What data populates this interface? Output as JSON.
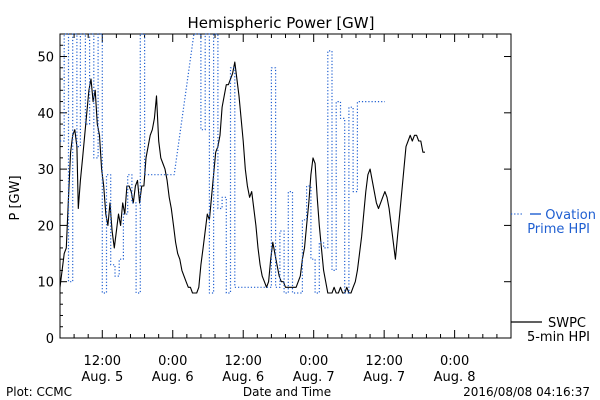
{
  "chart_data": {
    "type": "line",
    "title": "Hemispheric Power [GW]",
    "xlabel": "Date and Time",
    "ylabel": "P [GW]",
    "x_unit": "hours since Aug. 4 00:00",
    "xlim": [
      42,
      106
    ],
    "ylim": [
      0,
      54
    ],
    "y_ticks": [
      0,
      10,
      20,
      30,
      40,
      50
    ],
    "x_ticks": [
      {
        "x": 48,
        "time": "12:00",
        "date": "Aug. 5"
      },
      {
        "x": 58,
        "time": "0:00",
        "date": "Aug. 6"
      },
      {
        "x": 68,
        "time": "12:00",
        "date": "Aug. 6"
      },
      {
        "x": 78,
        "time": "0:00",
        "date": "Aug. 7"
      },
      {
        "x": 88,
        "time": "12:00",
        "date": "Aug. 7"
      },
      {
        "x": 98,
        "time": "0:00",
        "date": "Aug. 8"
      }
    ],
    "grid": false,
    "legend_position": "right",
    "series": [
      {
        "name": "SWPC 5-min HPI",
        "color": "#000000",
        "style": "solid",
        "points": [
          [
            42.0,
            9
          ],
          [
            42.3,
            12
          ],
          [
            42.6,
            15
          ],
          [
            42.9,
            16
          ],
          [
            43.2,
            25
          ],
          [
            43.5,
            33
          ],
          [
            43.8,
            36
          ],
          [
            44.1,
            37
          ],
          [
            44.4,
            34
          ],
          [
            44.6,
            23
          ],
          [
            44.9,
            28
          ],
          [
            45.2,
            32
          ],
          [
            45.5,
            36
          ],
          [
            45.8,
            40
          ],
          [
            46.1,
            44
          ],
          [
            46.4,
            46
          ],
          [
            46.7,
            42
          ],
          [
            47.0,
            44
          ],
          [
            47.3,
            38
          ],
          [
            47.6,
            36
          ],
          [
            47.9,
            30
          ],
          [
            48.2,
            27
          ],
          [
            48.5,
            22
          ],
          [
            48.8,
            20
          ],
          [
            49.1,
            24
          ],
          [
            49.4,
            19
          ],
          [
            49.7,
            16
          ],
          [
            50.0,
            19
          ],
          [
            50.3,
            22
          ],
          [
            50.6,
            20
          ],
          [
            50.9,
            24
          ],
          [
            51.2,
            22
          ],
          [
            51.5,
            27
          ],
          [
            51.8,
            27
          ],
          [
            52.1,
            26
          ],
          [
            52.4,
            24
          ],
          [
            52.7,
            27
          ],
          [
            53.0,
            28
          ],
          [
            53.3,
            24
          ],
          [
            53.6,
            27
          ],
          [
            53.9,
            27
          ],
          [
            54.2,
            32
          ],
          [
            54.5,
            34
          ],
          [
            54.8,
            36
          ],
          [
            55.1,
            37
          ],
          [
            55.4,
            39
          ],
          [
            55.7,
            43
          ],
          [
            56.0,
            35
          ],
          [
            56.3,
            32
          ],
          [
            56.6,
            31
          ],
          [
            56.9,
            30
          ],
          [
            57.2,
            28
          ],
          [
            57.5,
            25
          ],
          [
            57.8,
            23
          ],
          [
            58.1,
            20
          ],
          [
            58.4,
            17
          ],
          [
            58.7,
            15
          ],
          [
            59.0,
            14
          ],
          [
            59.3,
            12
          ],
          [
            59.6,
            11
          ],
          [
            59.9,
            10
          ],
          [
            60.2,
            9
          ],
          [
            60.5,
            9
          ],
          [
            60.8,
            8
          ],
          [
            61.1,
            8
          ],
          [
            61.4,
            8
          ],
          [
            61.7,
            9
          ],
          [
            62.0,
            13
          ],
          [
            62.3,
            16
          ],
          [
            62.6,
            19
          ],
          [
            62.9,
            22
          ],
          [
            63.2,
            21
          ],
          [
            63.5,
            25
          ],
          [
            63.8,
            29
          ],
          [
            64.1,
            33
          ],
          [
            64.4,
            34
          ],
          [
            64.7,
            36
          ],
          [
            65.0,
            41
          ],
          [
            65.3,
            43
          ],
          [
            65.6,
            45
          ],
          [
            65.9,
            45
          ],
          [
            66.2,
            46
          ],
          [
            66.5,
            47
          ],
          [
            66.8,
            49
          ],
          [
            67.1,
            46
          ],
          [
            67.4,
            43
          ],
          [
            67.7,
            39
          ],
          [
            68.0,
            35
          ],
          [
            68.3,
            30
          ],
          [
            68.6,
            27
          ],
          [
            68.9,
            25
          ],
          [
            69.2,
            26
          ],
          [
            69.5,
            23
          ],
          [
            69.8,
            20
          ],
          [
            70.1,
            16
          ],
          [
            70.4,
            13
          ],
          [
            70.7,
            11
          ],
          [
            71.0,
            10
          ],
          [
            71.3,
            9
          ],
          [
            71.6,
            10
          ],
          [
            71.9,
            14
          ],
          [
            72.2,
            17
          ],
          [
            72.5,
            15
          ],
          [
            72.8,
            13
          ],
          [
            73.1,
            11
          ],
          [
            73.4,
            10
          ],
          [
            73.7,
            10
          ],
          [
            74.0,
            9
          ],
          [
            74.3,
            9
          ],
          [
            74.6,
            9
          ],
          [
            74.9,
            9
          ],
          [
            75.2,
            9
          ],
          [
            75.5,
            9
          ],
          [
            75.8,
            10
          ],
          [
            76.1,
            11
          ],
          [
            76.4,
            14
          ],
          [
            76.7,
            16
          ],
          [
            77.0,
            20
          ],
          [
            77.3,
            24
          ],
          [
            77.6,
            29
          ],
          [
            77.9,
            32
          ],
          [
            78.2,
            31
          ],
          [
            78.5,
            25
          ],
          [
            78.8,
            20
          ],
          [
            79.1,
            16
          ],
          [
            79.4,
            12
          ],
          [
            79.7,
            10
          ],
          [
            80.0,
            8
          ],
          [
            80.3,
            8
          ],
          [
            80.6,
            8
          ],
          [
            80.9,
            9
          ],
          [
            81.2,
            8
          ],
          [
            81.5,
            8
          ],
          [
            81.8,
            9
          ],
          [
            82.1,
            8
          ],
          [
            82.4,
            8
          ],
          [
            82.7,
            9
          ],
          [
            83.0,
            8
          ],
          [
            83.3,
            8
          ],
          [
            83.6,
            9
          ],
          [
            83.9,
            10
          ],
          [
            84.2,
            12
          ],
          [
            84.5,
            15
          ],
          [
            84.8,
            18
          ],
          [
            85.1,
            22
          ],
          [
            85.4,
            26
          ],
          [
            85.7,
            29
          ],
          [
            86.0,
            30
          ],
          [
            86.3,
            28
          ],
          [
            86.6,
            26
          ],
          [
            86.9,
            24
          ],
          [
            87.2,
            23
          ],
          [
            87.5,
            24
          ],
          [
            87.8,
            25
          ],
          [
            88.1,
            26
          ],
          [
            88.4,
            25
          ],
          [
            88.7,
            23
          ],
          [
            89.0,
            20
          ],
          [
            89.3,
            17
          ],
          [
            89.6,
            14
          ],
          [
            89.9,
            18
          ],
          [
            90.2,
            22
          ],
          [
            90.5,
            26
          ],
          [
            90.8,
            30
          ],
          [
            91.1,
            34
          ],
          [
            91.4,
            35
          ],
          [
            91.7,
            36
          ],
          [
            92.0,
            35
          ],
          [
            92.3,
            36
          ],
          [
            92.6,
            36
          ],
          [
            92.9,
            35
          ],
          [
            93.2,
            35
          ],
          [
            93.5,
            33
          ],
          [
            93.8,
            33
          ]
        ]
      },
      {
        "name": "Ovation Prime HPI",
        "color": "#1f5fd1",
        "style": "dotted",
        "points": [
          [
            42.0,
            35
          ],
          [
            42.6,
            35
          ],
          [
            42.6,
            54
          ],
          [
            43.2,
            54
          ],
          [
            43.2,
            10
          ],
          [
            43.8,
            10
          ],
          [
            43.8,
            54
          ],
          [
            44.4,
            54
          ],
          [
            44.4,
            34
          ],
          [
            44.9,
            34
          ],
          [
            44.9,
            54
          ],
          [
            45.6,
            54
          ],
          [
            45.6,
            38
          ],
          [
            46.2,
            38
          ],
          [
            46.2,
            54
          ],
          [
            46.8,
            54
          ],
          [
            46.8,
            32
          ],
          [
            47.4,
            32
          ],
          [
            47.4,
            54
          ],
          [
            48.0,
            54
          ],
          [
            48.0,
            8
          ],
          [
            48.6,
            8
          ],
          [
            48.6,
            29
          ],
          [
            49.2,
            29
          ],
          [
            49.2,
            13
          ],
          [
            49.8,
            13
          ],
          [
            49.8,
            11
          ],
          [
            50.4,
            11
          ],
          [
            50.4,
            14
          ],
          [
            51.0,
            14
          ],
          [
            51.0,
            22
          ],
          [
            51.6,
            22
          ],
          [
            51.6,
            29
          ],
          [
            52.2,
            29
          ],
          [
            52.2,
            24
          ],
          [
            52.8,
            24
          ],
          [
            52.8,
            8
          ],
          [
            53.4,
            8
          ],
          [
            53.4,
            54
          ],
          [
            54.0,
            54
          ],
          [
            54.0,
            29
          ],
          [
            58.2,
            29
          ],
          [
            61.0,
            54
          ],
          [
            62.0,
            54
          ],
          [
            62.0,
            37
          ],
          [
            62.6,
            37
          ],
          [
            62.6,
            54
          ],
          [
            63.2,
            54
          ],
          [
            63.2,
            8
          ],
          [
            63.8,
            8
          ],
          [
            63.8,
            54
          ],
          [
            64.4,
            54
          ],
          [
            64.4,
            23
          ],
          [
            65.0,
            23
          ],
          [
            65.0,
            25
          ],
          [
            65.6,
            25
          ],
          [
            65.6,
            8
          ],
          [
            66.2,
            8
          ],
          [
            66.2,
            48
          ],
          [
            66.8,
            48
          ],
          [
            66.8,
            9
          ],
          [
            67.4,
            9
          ],
          [
            67.4,
            9
          ],
          [
            72.0,
            9
          ],
          [
            72.0,
            48
          ],
          [
            72.6,
            48
          ],
          [
            72.6,
            9
          ],
          [
            73.2,
            9
          ],
          [
            73.2,
            19
          ],
          [
            73.8,
            19
          ],
          [
            73.8,
            8
          ],
          [
            74.4,
            8
          ],
          [
            74.4,
            26
          ],
          [
            75.0,
            26
          ],
          [
            75.0,
            8
          ],
          [
            76.4,
            8
          ],
          [
            76.4,
            21
          ],
          [
            77.0,
            21
          ],
          [
            77.0,
            27
          ],
          [
            77.6,
            27
          ],
          [
            77.6,
            14
          ],
          [
            78.2,
            14
          ],
          [
            78.2,
            8
          ],
          [
            78.8,
            8
          ],
          [
            78.8,
            17
          ],
          [
            79.4,
            17
          ],
          [
            79.4,
            16
          ],
          [
            80.0,
            16
          ],
          [
            80.0,
            51
          ],
          [
            80.6,
            51
          ],
          [
            80.6,
            12
          ],
          [
            81.2,
            12
          ],
          [
            81.2,
            42
          ],
          [
            81.8,
            42
          ],
          [
            81.8,
            39
          ],
          [
            82.4,
            39
          ],
          [
            82.4,
            8
          ],
          [
            83.0,
            8
          ],
          [
            83.0,
            41
          ],
          [
            83.6,
            41
          ],
          [
            83.6,
            26
          ],
          [
            84.2,
            26
          ],
          [
            84.2,
            42
          ],
          [
            88.1,
            42
          ]
        ]
      }
    ],
    "legend": [
      {
        "series": "Ovation Prime HPI",
        "line1": "Ovation",
        "line2": "Prime HPI",
        "color": "#1f5fd1"
      },
      {
        "series": "SWPC 5-min HPI",
        "line1": "SWPC",
        "line2": "5-min HPI",
        "color": "#000000"
      }
    ]
  },
  "footer": {
    "left": "Plot: CCMC",
    "center": "Date and Time",
    "right": "2016/08/08 04:16:37"
  }
}
